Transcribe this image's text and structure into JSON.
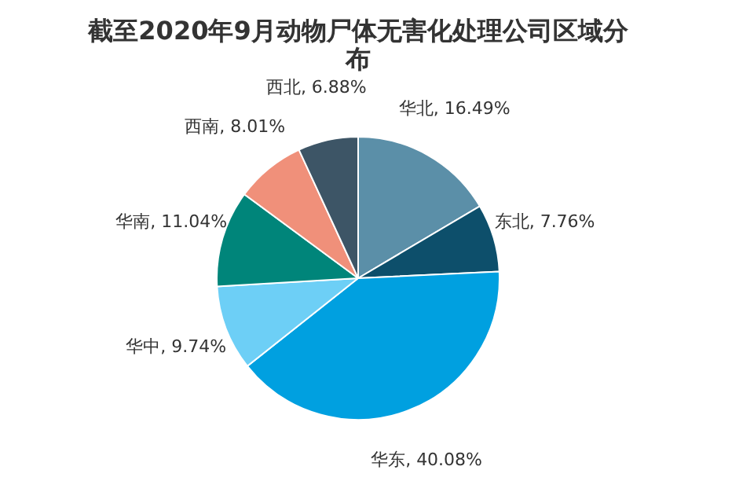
{
  "chart_data": {
    "type": "pie",
    "title": "截至2020年9月动物尸体无害化处理公司区域分布",
    "categories": [
      "华北",
      "东北",
      "华东",
      "华中",
      "华南",
      "西南",
      "西北"
    ],
    "values": [
      16.49,
      7.76,
      40.08,
      9.74,
      11.04,
      8.01,
      6.88
    ],
    "value_labels": [
      "16.49%",
      "7.76%",
      "40.08%",
      "9.74%",
      "11.04%",
      "8.01%",
      "6.88%"
    ],
    "colors": [
      "#5b8fa8",
      "#0d4f6b",
      "#00a0e0",
      "#6dcff6",
      "#00857a",
      "#f0907a",
      "#3d5566"
    ],
    "legend": false
  }
}
